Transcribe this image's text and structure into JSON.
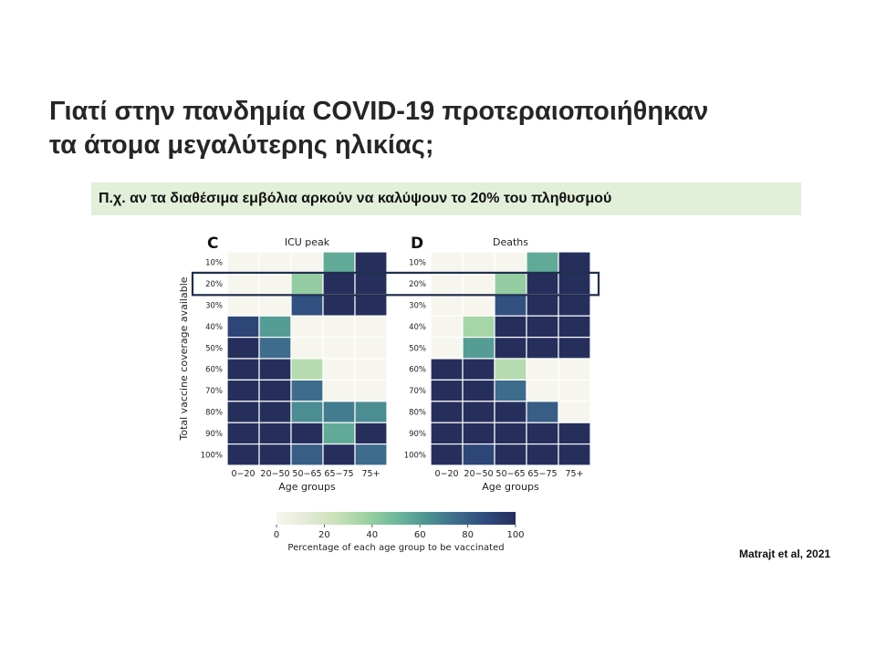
{
  "slide": {
    "title_line1": "Γιατί στην πανδημία COVID-19 προτεραιοποιήθηκαν",
    "title_line2": "τα άτομα μεγαλύτερης ηλικίας;",
    "subtitle": "Π.χ. αν τα διαθέσιμα εμβόλια αρκούν να καλύψουν το 20% του πληθυσμού",
    "citation": "Matrajt et al, 2021"
  },
  "colors": {
    "highlight_box": "#1f2f4f",
    "subtitle_background": "#e2efd9",
    "colormap": [
      "#f7f6ee",
      "#e4ebd6",
      "#c9e1b8",
      "#9dd2a3",
      "#70b89a",
      "#4e9594",
      "#3e6c8c",
      "#2f4a7e",
      "#262f5c"
    ]
  },
  "chart_data": {
    "type": "heatmap",
    "ylabel": "Total vaccine coverage available",
    "xlabel": "Age groups",
    "x_categories": [
      "0−20",
      "20−50",
      "50−65",
      "65−75",
      "75+"
    ],
    "y_categories": [
      "10%",
      "20%",
      "30%",
      "40%",
      "50%",
      "60%",
      "70%",
      "80%",
      "90%",
      "100%"
    ],
    "highlighted_row": "20%",
    "colorbar": {
      "label": "Percentage of each age group to be vaccinated",
      "ticks": [
        "0",
        "20",
        "40",
        "60",
        "80",
        "100"
      ],
      "range": [
        0,
        100
      ]
    },
    "panels": [
      {
        "letter": "C",
        "title": "ICU peak",
        "values": [
          [
            0,
            0,
            0,
            55,
            100
          ],
          [
            0,
            0,
            40,
            100,
            100
          ],
          [
            0,
            0,
            85,
            100,
            100
          ],
          [
            90,
            60,
            0,
            0,
            0
          ],
          [
            100,
            75,
            0,
            0,
            0
          ],
          [
            100,
            100,
            30,
            0,
            0
          ],
          [
            100,
            100,
            75,
            0,
            0
          ],
          [
            100,
            100,
            65,
            70,
            65
          ],
          [
            100,
            100,
            100,
            55,
            100
          ],
          [
            100,
            100,
            80,
            100,
            75
          ]
        ]
      },
      {
        "letter": "D",
        "title": "Deaths",
        "values": [
          [
            0,
            0,
            0,
            55,
            100
          ],
          [
            0,
            0,
            40,
            100,
            100
          ],
          [
            0,
            0,
            85,
            100,
            100
          ],
          [
            0,
            35,
            100,
            100,
            100
          ],
          [
            0,
            60,
            100,
            100,
            100
          ],
          [
            100,
            100,
            30,
            0,
            0
          ],
          [
            100,
            100,
            75,
            0,
            0
          ],
          [
            100,
            100,
            100,
            80,
            0
          ],
          [
            100,
            100,
            100,
            100,
            100
          ],
          [
            100,
            90,
            100,
            100,
            100
          ]
        ]
      }
    ]
  }
}
